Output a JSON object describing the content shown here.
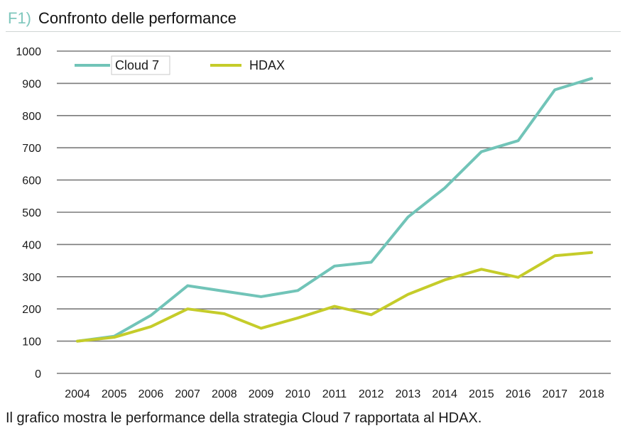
{
  "header": {
    "label": "F1)",
    "title": "Confronto delle performance"
  },
  "caption": "Il grafico mostra le performance della strategia Cloud 7 rapportata al HDAX.",
  "colors": {
    "cloud7": "#71c4b8",
    "hdax": "#c5cc2a",
    "grid": "#7a7a7a",
    "label_accent": "#7fc7bd"
  },
  "chart_data": {
    "type": "line",
    "title": "Confronto delle performance",
    "xlabel": "",
    "ylabel": "",
    "categories": [
      "2004",
      "2005",
      "2006",
      "2007",
      "2008",
      "2009",
      "2010",
      "2011",
      "2012",
      "2013",
      "2014",
      "2015",
      "2016",
      "2017",
      "2018"
    ],
    "ylim": [
      0,
      1000
    ],
    "yticks": [
      0,
      100,
      200,
      300,
      400,
      500,
      600,
      700,
      800,
      900,
      1000
    ],
    "grid": "horizontal",
    "legend_position": "top-left",
    "series": [
      {
        "name": "Cloud 7",
        "color": "#71c4b8",
        "values": [
          100,
          115,
          180,
          272,
          255,
          238,
          257,
          333,
          345,
          485,
          575,
          688,
          722,
          880,
          915
        ]
      },
      {
        "name": "HDAX",
        "color": "#c5cc2a",
        "values": [
          100,
          112,
          145,
          200,
          185,
          140,
          172,
          208,
          182,
          245,
          290,
          323,
          298,
          365,
          375
        ]
      }
    ]
  }
}
